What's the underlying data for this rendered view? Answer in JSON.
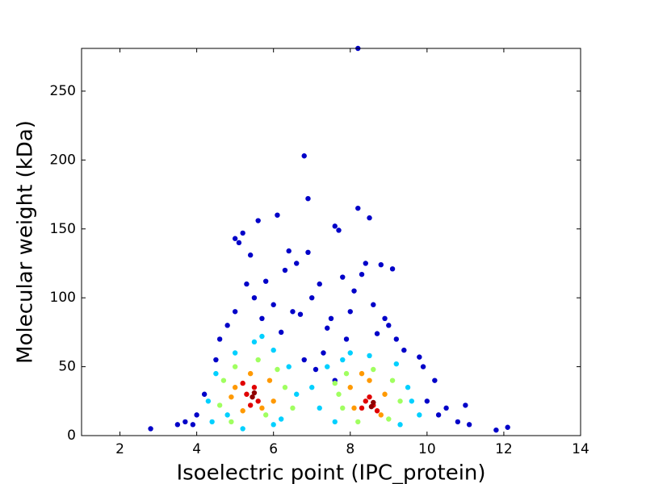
{
  "chart_data": {
    "type": "scatter",
    "x_label": "Isoelectric point (IPC_protein)",
    "y_label": "Molecular weight (kDa)",
    "xlim": [
      1,
      14
    ],
    "xticks": [
      2,
      4,
      6,
      8,
      10,
      12,
      14
    ],
    "ylim": [
      0,
      281
    ],
    "yticks": [
      0,
      50,
      100,
      150,
      200,
      250
    ],
    "series": [
      {
        "color": "#0000c8",
        "x": [
          2.8,
          3.5,
          3.7,
          11.8,
          12.1,
          6.8,
          6.9,
          8.2,
          8.5,
          6.1,
          5.6,
          7.6,
          7.7,
          5.2,
          5.1,
          5.0,
          5.4,
          6.4,
          6.9,
          8.4,
          8.8,
          9.1,
          5.3,
          5.5,
          6.0,
          6.5,
          7.0,
          7.5,
          7.8,
          8.1,
          8.6,
          9.0,
          9.8,
          10.2,
          10.5,
          11.0,
          10.8,
          4.5,
          4.2,
          4.8,
          6.3,
          6.6,
          7.2,
          8.0,
          8.3,
          9.4,
          9.9,
          5.7,
          6.2,
          4.6,
          7.3,
          7.9,
          8.9,
          5.0,
          10.0,
          10.3,
          11.1,
          4.0,
          3.9,
          6.7,
          7.4,
          8.7,
          9.2,
          5.8,
          6.8,
          7.1,
          7.6,
          8.2
        ],
        "values": [
          5,
          8,
          10,
          4,
          6,
          203,
          172,
          165,
          158,
          160,
          156,
          152,
          149,
          147,
          140,
          143,
          131,
          134,
          133,
          125,
          124,
          121,
          110,
          100,
          95,
          90,
          100,
          85,
          115,
          105,
          95,
          80,
          57,
          40,
          20,
          22,
          10,
          55,
          30,
          80,
          120,
          125,
          110,
          90,
          117,
          62,
          50,
          85,
          75,
          70,
          60,
          70,
          85,
          90,
          25,
          15,
          8,
          15,
          8,
          88,
          78,
          74,
          70,
          112,
          55,
          48,
          40,
          281
        ]
      },
      {
        "color": "#00d0ff",
        "x": [
          4.5,
          5.0,
          5.5,
          6.0,
          6.4,
          4.3,
          6.6,
          4.8,
          6.2,
          7.4,
          7.8,
          8.5,
          9.2,
          9.5,
          9.8,
          7.2,
          7.6,
          9.3,
          5.2,
          6.0,
          4.4,
          9.6,
          7.0,
          8.0,
          5.7
        ],
        "values": [
          45,
          60,
          68,
          62,
          50,
          25,
          30,
          15,
          12,
          50,
          55,
          58,
          52,
          35,
          15,
          20,
          10,
          8,
          5,
          8,
          10,
          25,
          35,
          60,
          72
        ]
      },
      {
        "color": "#a0ff60",
        "x": [
          4.7,
          5.0,
          5.6,
          6.1,
          6.3,
          4.6,
          5.8,
          7.6,
          7.9,
          8.6,
          9.1,
          9.3,
          9.0,
          7.8,
          6.5,
          8.2,
          4.9,
          7.7
        ],
        "values": [
          40,
          50,
          55,
          48,
          35,
          22,
          15,
          38,
          45,
          48,
          40,
          25,
          12,
          20,
          20,
          10,
          10,
          30
        ]
      },
      {
        "color": "#ff9900",
        "x": [
          5.0,
          5.4,
          5.9,
          6.0,
          5.2,
          5.7,
          8.0,
          8.5,
          8.9,
          8.8,
          8.1,
          8.3,
          4.9
        ],
        "values": [
          35,
          45,
          40,
          25,
          18,
          20,
          35,
          40,
          30,
          15,
          20,
          45,
          28
        ]
      },
      {
        "color": "#e00000",
        "x": [
          5.3,
          5.5,
          5.6,
          5.4,
          5.2,
          8.4,
          8.6,
          8.7,
          8.5,
          8.3
        ],
        "values": [
          30,
          35,
          25,
          22,
          38,
          25,
          22,
          18,
          28,
          20
        ]
      },
      {
        "color": "#900000",
        "x": [
          5.45,
          5.5,
          8.55,
          8.6
        ],
        "values": [
          28,
          31,
          21,
          24
        ]
      }
    ]
  }
}
